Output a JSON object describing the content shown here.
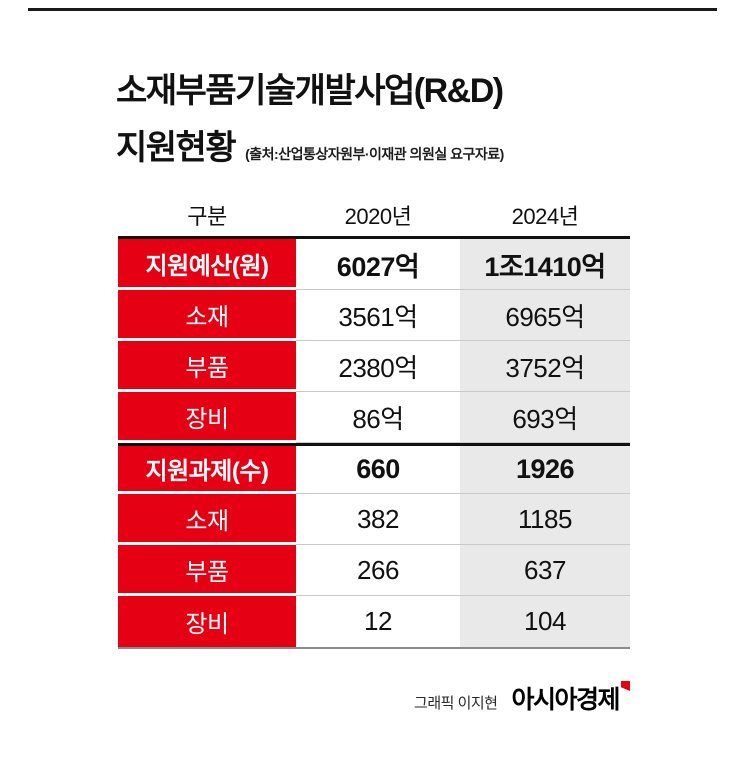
{
  "title": {
    "line1": "소재부품기술개발사업(R&D)",
    "line2": "지원현황",
    "source": "(출처:산업통상자원부·이재관 의원실 요구자료)"
  },
  "chart_data": {
    "type": "table",
    "title": "소재부품기술개발사업(R&D) 지원현황",
    "source": "(출처:산업통상자원부·이재관 의원실 요구자료)",
    "columns": [
      "구분",
      "2020년",
      "2024년"
    ],
    "rows": [
      {
        "label": "지원예산(원)",
        "v2020": "6027억",
        "v2024": "1조1410억",
        "bold": true
      },
      {
        "label": "소재",
        "v2020": "3561억",
        "v2024": "6965억",
        "bold": false
      },
      {
        "label": "부품",
        "v2020": "2380억",
        "v2024": "3752억",
        "bold": false
      },
      {
        "label": "장비",
        "v2020": "86억",
        "v2024": "693억",
        "bold": false
      },
      {
        "label": "지원과제(수)",
        "v2020": "660",
        "v2024": "1926",
        "bold": true
      },
      {
        "label": "소재",
        "v2020": "382",
        "v2024": "1185",
        "bold": false
      },
      {
        "label": "부품",
        "v2020": "266",
        "v2024": "637",
        "bold": false
      },
      {
        "label": "장비",
        "v2020": "12",
        "v2024": "104",
        "bold": false
      }
    ]
  },
  "footer": {
    "credit": "그래픽 이지현",
    "brand": "아시아경제"
  },
  "colors": {
    "red": "#e60013",
    "value_col_bg": "#e9e9e9",
    "heavy_line": "#111111",
    "row_line": "#c9c9c9",
    "bottom_line": "#8a8a8a"
  }
}
